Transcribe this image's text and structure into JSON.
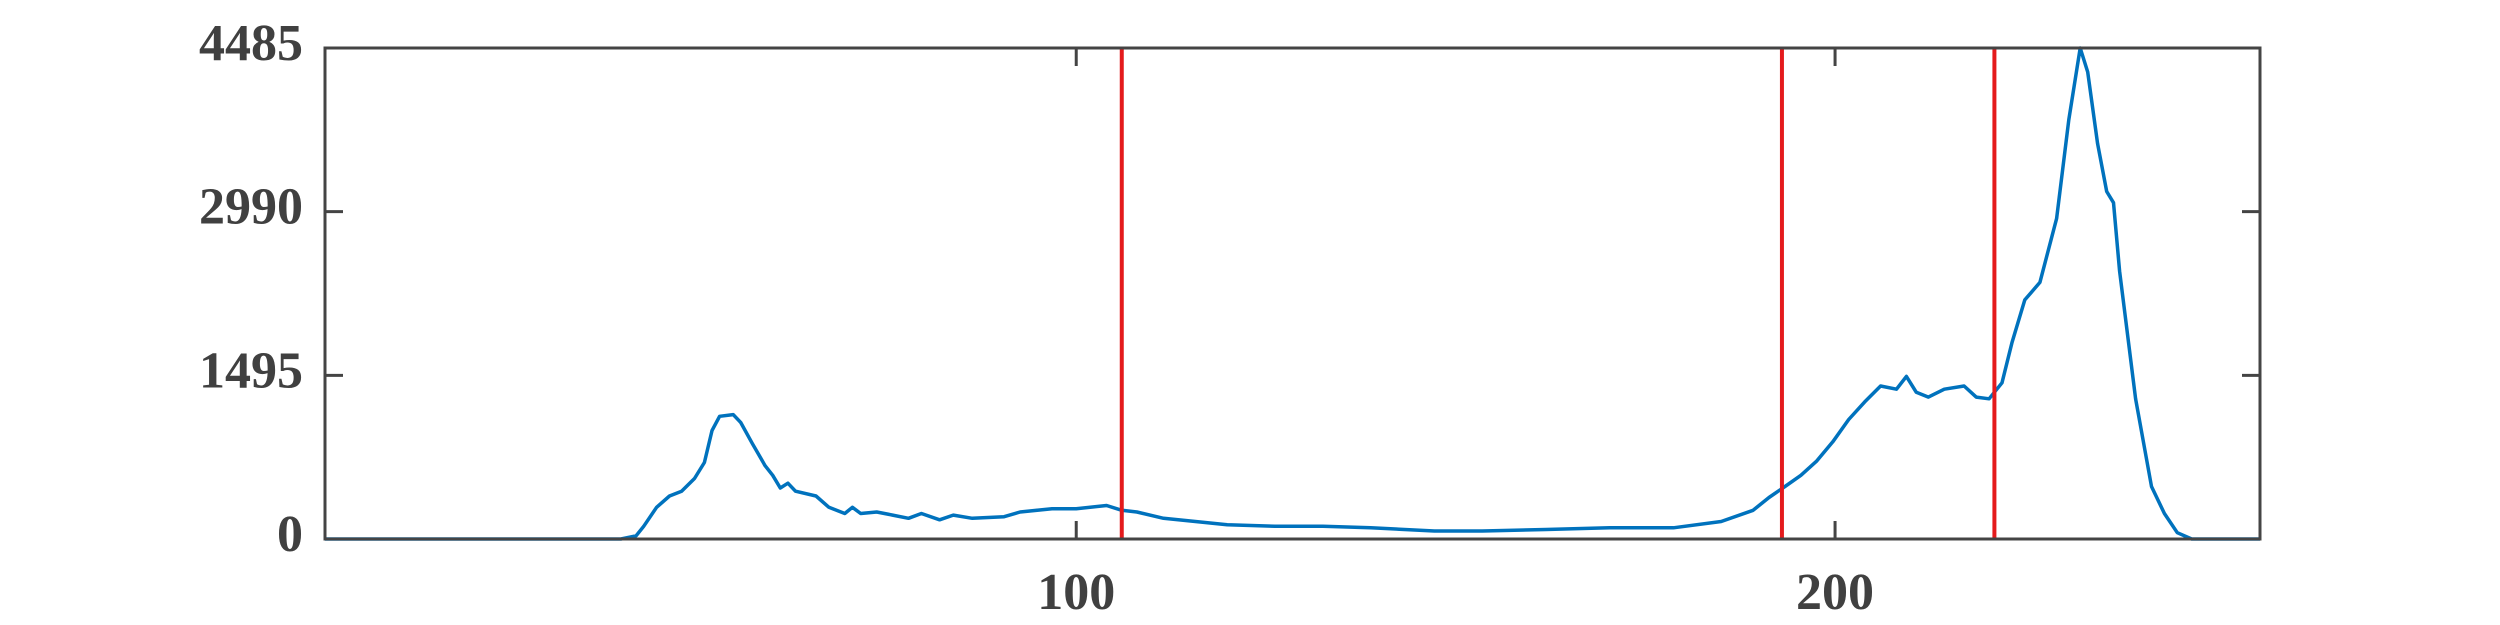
{
  "chart_data": {
    "type": "line",
    "x": [
      1,
      40,
      42,
      43,
      44.7,
      46.4,
      48,
      49.7,
      51,
      52,
      53,
      54.8,
      55.8,
      57.3,
      59,
      60,
      61,
      62,
      63,
      65.7,
      67.4,
      69.5,
      70.5,
      71.6,
      73.7,
      75.8,
      77.9,
      79.6,
      82,
      83.8,
      86.3,
      90.5,
      92.6,
      96.8,
      100,
      104,
      106,
      108,
      111.5,
      115.7,
      119.9,
      126.2,
      132.5,
      138.8,
      147.2,
      153.5,
      161.9,
      170.3,
      178.7,
      185,
      189.2,
      191.3,
      193.4,
      195.5,
      197.6,
      199.7,
      201.8,
      203.9,
      206,
      208.1,
      209.4,
      210.7,
      212.3,
      214.4,
      217,
      218.6,
      220.3,
      222,
      223.3,
      225,
      227,
      229.2,
      230.8,
      232.3,
      233.3,
      234.6,
      235.8,
      236.7,
      237.5,
      239.6,
      241.7,
      243.4,
      245.1,
      247,
      256
    ],
    "values": [
      0,
      0,
      29,
      116,
      290,
      393,
      437,
      553,
      699,
      990,
      1121,
      1136,
      1063,
      874,
      670,
      582,
      466,
      510,
      437,
      393,
      290,
      233,
      290,
      233,
      247,
      218,
      189,
      233,
      175,
      218,
      189,
      204,
      247,
      277,
      277,
      306,
      262,
      247,
      189,
      160,
      131,
      116,
      116,
      102,
      73,
      73,
      87,
      102,
      102,
      160,
      262,
      379,
      480,
      582,
      713,
      888,
      1092,
      1252,
      1398,
      1368,
      1485,
      1340,
      1296,
      1368,
      1398,
      1296,
      1281,
      1427,
      1791,
      2184,
      2344,
      2927,
      3829,
      4485,
      4266,
      3611,
      3174,
      3072,
      2446,
      1281,
      480,
      233,
      58,
      0,
      0
    ],
    "color": "#0072bd",
    "xlim": [
      1,
      256
    ],
    "xticks": [
      100,
      200
    ],
    "ylim": [
      0,
      4485
    ],
    "yticks": [
      0,
      1495,
      2990,
      4485
    ],
    "vlines": {
      "x": [
        106,
        193,
        221
      ],
      "color": "#e41a1c"
    }
  }
}
